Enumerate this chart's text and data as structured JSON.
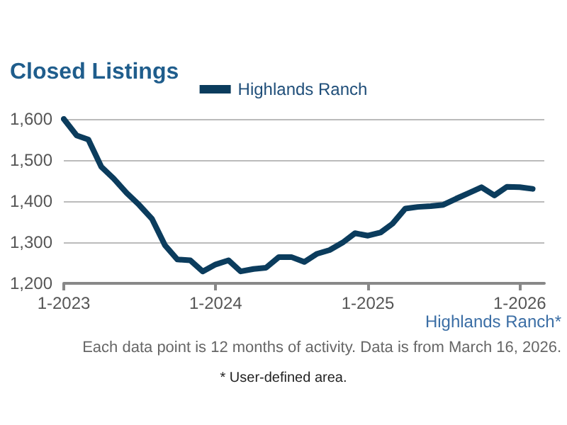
{
  "chart_data": {
    "type": "line",
    "title": "Closed Listings",
    "x": [
      "2023-01",
      "2023-02",
      "2023-03",
      "2023-04",
      "2023-05",
      "2023-06",
      "2023-07",
      "2023-08",
      "2023-09",
      "2023-10",
      "2023-11",
      "2023-12",
      "2024-01",
      "2024-02",
      "2024-03",
      "2024-04",
      "2024-05",
      "2024-06",
      "2024-07",
      "2024-08",
      "2024-09",
      "2024-10",
      "2024-11",
      "2024-12",
      "2025-01",
      "2025-02",
      "2025-03",
      "2025-04",
      "2025-05",
      "2025-06",
      "2025-07",
      "2025-08",
      "2025-09",
      "2025-10",
      "2025-11",
      "2025-12",
      "2026-01",
      "2026-02"
    ],
    "series": [
      {
        "name": "Highlands Ranch",
        "color": "#0b3c5d",
        "values": [
          1600,
          1560,
          1550,
          1484,
          1455,
          1420,
          1391,
          1357,
          1293,
          1258,
          1256,
          1229,
          1246,
          1256,
          1229,
          1235,
          1238,
          1264,
          1264,
          1252,
          1272,
          1281,
          1299,
          1322,
          1316,
          1324,
          1345,
          1382,
          1386,
          1388,
          1391,
          1406,
          1420,
          1434,
          1414,
          1435,
          1434,
          1430
        ]
      }
    ],
    "xlim": [
      "2023-01",
      "2026-03"
    ],
    "xticks": [
      {
        "value": "2023-01",
        "label": "1-2023"
      },
      {
        "value": "2024-01",
        "label": "1-2024"
      },
      {
        "value": "2025-01",
        "label": "1-2025"
      },
      {
        "value": "2026-01",
        "label": "1-2026"
      }
    ],
    "ylim": [
      1200,
      1600
    ],
    "yticks": [
      {
        "value": 1200,
        "label": "1,200"
      },
      {
        "value": 1300,
        "label": "1,300"
      },
      {
        "value": 1400,
        "label": "1,400"
      },
      {
        "value": 1500,
        "label": "1,500"
      },
      {
        "value": 1600,
        "label": "1,600"
      }
    ],
    "grid": "y",
    "legend": "top",
    "marker": "none",
    "line_style": "solid",
    "annotations": [
      "Highlands Ranch*",
      "Each data point is 12 months of activity. Data is from March 16, 2026.",
      "* User-defined area."
    ]
  }
}
